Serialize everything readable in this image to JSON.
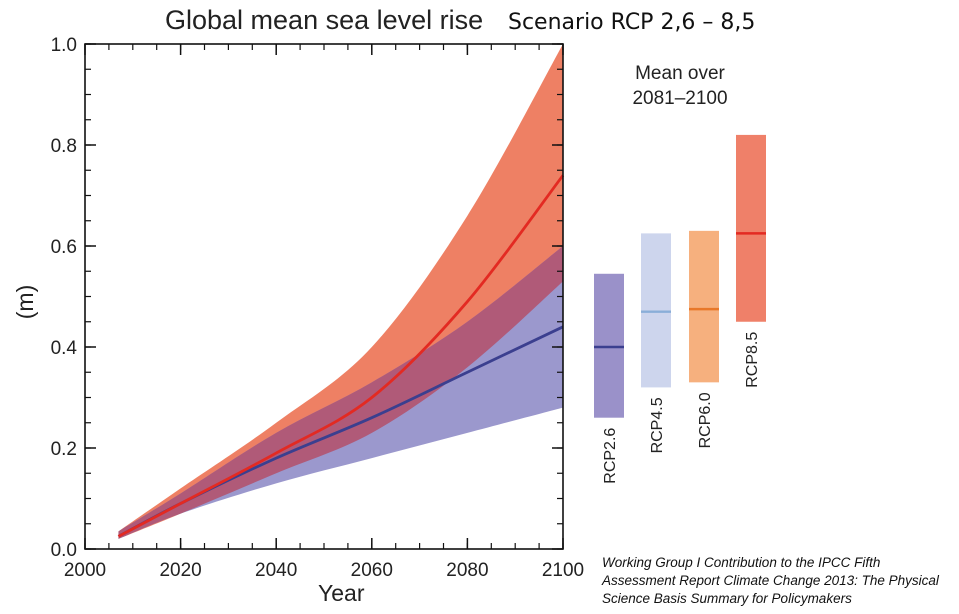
{
  "chart_data": {
    "type": "area",
    "title": "Global mean sea level rise",
    "subtitle": "Scenario RCP 2,6 – 8,5",
    "xlabel": "Year",
    "ylabel": "(m)",
    "xlim": [
      2000,
      2100
    ],
    "ylim": [
      0.0,
      1.0
    ],
    "x_ticks": [
      2000,
      2020,
      2040,
      2060,
      2080,
      2100
    ],
    "x_tick_labels": [
      "2000",
      "2020",
      "2040",
      "2060",
      "2080",
      "2100"
    ],
    "y_ticks": [
      0.0,
      0.2,
      0.4,
      0.6,
      0.8,
      1.0
    ],
    "y_tick_labels": [
      "0.0",
      "0.2",
      "0.4",
      "0.6",
      "0.8",
      "1.0"
    ],
    "x": [
      2007,
      2020,
      2040,
      2060,
      2080,
      2100
    ],
    "series": [
      {
        "name": "RCP2.6",
        "color": "#3b3f8f",
        "band_color": "#8a86c4",
        "mean": [
          0.025,
          0.09,
          0.18,
          0.26,
          0.35,
          0.44
        ],
        "lower": [
          0.02,
          0.07,
          0.13,
          0.18,
          0.23,
          0.28
        ],
        "upper": [
          0.035,
          0.11,
          0.23,
          0.33,
          0.45,
          0.6
        ]
      },
      {
        "name": "RCP8.5",
        "color": "#e32a22",
        "band_color": "#ee8064",
        "mean": [
          0.025,
          0.09,
          0.19,
          0.3,
          0.49,
          0.74
        ],
        "lower": [
          0.02,
          0.07,
          0.15,
          0.23,
          0.36,
          0.53
        ],
        "upper": [
          0.035,
          0.12,
          0.25,
          0.4,
          0.66,
          1.0
        ]
      }
    ],
    "overlap_color": "#b05a78",
    "mean_box_title": [
      "Mean over",
      "2081–2100"
    ],
    "mean_bars": [
      {
        "name": "RCP2.6",
        "low": 0.26,
        "mean": 0.4,
        "high": 0.545,
        "fill": "#9a91c9",
        "line": "#3b3f8f"
      },
      {
        "name": "RCP4.5",
        "low": 0.32,
        "mean": 0.47,
        "high": 0.625,
        "fill": "#cdd5ed",
        "line": "#8aaed8"
      },
      {
        "name": "RCP6.0",
        "low": 0.33,
        "mean": 0.475,
        "high": 0.63,
        "fill": "#f6b07e",
        "line": "#e8782a"
      },
      {
        "name": "RCP8.5",
        "low": 0.45,
        "mean": 0.625,
        "high": 0.82,
        "fill": "#ef8069",
        "line": "#e32a22"
      }
    ]
  },
  "credit": [
    "Working Group I Contribution to the IPCC Fifth",
    "Assessment Report Climate Change 2013: The Physical",
    "Science Basis Summary for Policymakers"
  ]
}
